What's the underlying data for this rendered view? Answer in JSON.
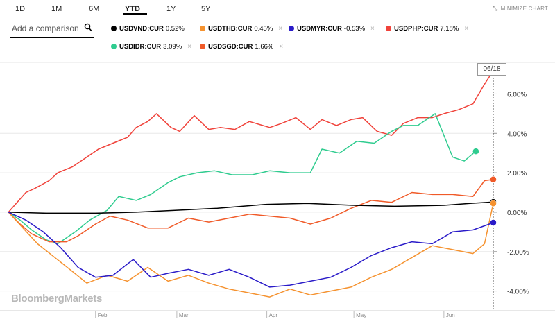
{
  "ranges": [
    "1D",
    "1M",
    "6M",
    "YTD",
    "1Y",
    "5Y"
  ],
  "active_range": "YTD",
  "minimize_label": "MINIMIZE CHART",
  "search": {
    "placeholder": "Add a comparison"
  },
  "date_badge": "06/18",
  "watermark": "BloombergMarkets",
  "legend": [
    {
      "name": "USDVND:CUR",
      "value": "0.52%",
      "color": "#000000",
      "removable": false
    },
    {
      "name": "USDTHB:CUR",
      "value": "0.45%",
      "color": "#f5922f",
      "removable": true
    },
    {
      "name": "USDMYR:CUR",
      "value": "-0.53%",
      "color": "#2a1bc8",
      "removable": true
    },
    {
      "name": "USDPHP:CUR",
      "value": "7.18%",
      "color": "#f0423a",
      "removable": true
    },
    {
      "name": "USDIDR:CUR",
      "value": "3.09%",
      "color": "#2fcc8f",
      "removable": true
    },
    {
      "name": "USDSGD:CUR",
      "value": "1.66%",
      "color": "#f05a28",
      "removable": true
    }
  ],
  "close_symbol": "×",
  "chart_data": {
    "type": "line",
    "ylim": [
      -5,
      7.6
    ],
    "y_ticks": [
      6,
      4,
      2,
      0,
      -2,
      -4
    ],
    "y_tick_labels": [
      "6.00%",
      "4.00%",
      "2.00%",
      "0.00%",
      "-2.00%",
      "-4.00%"
    ],
    "x_tick_labels": [
      "Feb",
      "Mar",
      "Apr",
      "May",
      "Jun"
    ],
    "x_tick_dates": [
      "2018-02-01",
      "2018-03-01",
      "2018-04-01",
      "2018-05-01",
      "2018-06-01"
    ],
    "x_range": [
      "2018-01-01",
      "2018-06-18"
    ],
    "grid": true,
    "series": [
      {
        "name": "USDPHP:CUR",
        "color": "#f0423a",
        "x": [
          "2018-01-02",
          "2018-01-05",
          "2018-01-08",
          "2018-01-11",
          "2018-01-16",
          "2018-01-19",
          "2018-01-24",
          "2018-01-29",
          "2018-02-02",
          "2018-02-07",
          "2018-02-12",
          "2018-02-15",
          "2018-02-19",
          "2018-02-22",
          "2018-02-27",
          "2018-03-02",
          "2018-03-07",
          "2018-03-12",
          "2018-03-16",
          "2018-03-21",
          "2018-03-26",
          "2018-04-02",
          "2018-04-06",
          "2018-04-11",
          "2018-04-16",
          "2018-04-20",
          "2018-04-25",
          "2018-04-30",
          "2018-05-04",
          "2018-05-09",
          "2018-05-14",
          "2018-05-18",
          "2018-05-23",
          "2018-05-28",
          "2018-06-01",
          "2018-06-06",
          "2018-06-11",
          "2018-06-15",
          "2018-06-18"
        ],
        "y": [
          0.0,
          0.5,
          1.0,
          1.2,
          1.6,
          2.0,
          2.3,
          2.8,
          3.2,
          3.5,
          3.8,
          4.3,
          4.6,
          5.0,
          4.3,
          4.1,
          4.9,
          4.2,
          4.3,
          4.2,
          4.6,
          4.3,
          4.5,
          4.8,
          4.2,
          4.7,
          4.4,
          4.7,
          4.8,
          4.1,
          3.9,
          4.5,
          4.8,
          4.8,
          5.0,
          5.2,
          5.5,
          6.5,
          7.18
        ]
      },
      {
        "name": "USDIDR:CUR",
        "color": "#2fcc8f",
        "x": [
          "2018-01-02",
          "2018-01-06",
          "2018-01-10",
          "2018-01-15",
          "2018-01-19",
          "2018-01-25",
          "2018-01-30",
          "2018-02-05",
          "2018-02-09",
          "2018-02-15",
          "2018-02-20",
          "2018-02-26",
          "2018-03-02",
          "2018-03-08",
          "2018-03-14",
          "2018-03-20",
          "2018-03-27",
          "2018-04-02",
          "2018-04-09",
          "2018-04-16",
          "2018-04-20",
          "2018-04-26",
          "2018-05-02",
          "2018-05-08",
          "2018-05-14",
          "2018-05-18",
          "2018-05-23",
          "2018-05-29",
          "2018-06-04",
          "2018-06-08",
          "2018-06-12"
        ],
        "y": [
          0.0,
          -0.4,
          -0.9,
          -1.4,
          -1.6,
          -1.0,
          -0.4,
          0.1,
          0.8,
          0.6,
          0.9,
          1.5,
          1.8,
          2.0,
          2.1,
          1.9,
          1.9,
          2.1,
          2.0,
          2.0,
          3.2,
          3.0,
          3.6,
          3.5,
          4.1,
          4.4,
          4.4,
          5.0,
          2.8,
          2.6,
          3.09
        ]
      },
      {
        "name": "USDSGD:CUR",
        "color": "#f05a28",
        "x": [
          "2018-01-02",
          "2018-01-06",
          "2018-01-10",
          "2018-01-16",
          "2018-01-22",
          "2018-01-26",
          "2018-02-01",
          "2018-02-06",
          "2018-02-12",
          "2018-02-19",
          "2018-02-26",
          "2018-03-05",
          "2018-03-12",
          "2018-03-19",
          "2018-03-26",
          "2018-04-02",
          "2018-04-09",
          "2018-04-16",
          "2018-04-23",
          "2018-04-30",
          "2018-05-07",
          "2018-05-14",
          "2018-05-21",
          "2018-05-28",
          "2018-06-04",
          "2018-06-11",
          "2018-06-15",
          "2018-06-18"
        ],
        "y": [
          0.0,
          -0.6,
          -1.1,
          -1.5,
          -1.5,
          -1.2,
          -0.6,
          -0.2,
          -0.4,
          -0.8,
          -0.8,
          -0.3,
          -0.5,
          -0.3,
          -0.1,
          -0.2,
          -0.3,
          -0.6,
          -0.3,
          0.2,
          0.6,
          0.5,
          1.0,
          0.9,
          0.9,
          0.8,
          1.6,
          1.66
        ]
      },
      {
        "name": "USDVND:CUR",
        "color": "#000000",
        "x": [
          "2018-01-02",
          "2018-01-15",
          "2018-02-01",
          "2018-02-15",
          "2018-03-01",
          "2018-03-15",
          "2018-04-01",
          "2018-04-15",
          "2018-05-01",
          "2018-05-15",
          "2018-06-01",
          "2018-06-10",
          "2018-06-18"
        ],
        "y": [
          0.0,
          -0.05,
          -0.05,
          0.0,
          0.1,
          0.2,
          0.4,
          0.45,
          0.35,
          0.3,
          0.35,
          0.45,
          0.52
        ]
      },
      {
        "name": "USDTHB:CUR",
        "color": "#f5922f",
        "x": [
          "2018-01-02",
          "2018-01-07",
          "2018-01-12",
          "2018-01-18",
          "2018-01-24",
          "2018-01-29",
          "2018-02-05",
          "2018-02-12",
          "2018-02-19",
          "2018-02-26",
          "2018-03-05",
          "2018-03-12",
          "2018-03-19",
          "2018-03-26",
          "2018-04-02",
          "2018-04-09",
          "2018-04-16",
          "2018-04-23",
          "2018-04-30",
          "2018-05-07",
          "2018-05-14",
          "2018-05-21",
          "2018-05-28",
          "2018-06-04",
          "2018-06-11",
          "2018-06-15",
          "2018-06-18"
        ],
        "y": [
          0.0,
          -0.8,
          -1.6,
          -2.3,
          -3.0,
          -3.6,
          -3.2,
          -3.5,
          -2.8,
          -3.5,
          -3.2,
          -3.6,
          -3.9,
          -4.1,
          -4.3,
          -3.9,
          -4.2,
          -4.0,
          -3.8,
          -3.3,
          -2.9,
          -2.3,
          -1.7,
          -1.9,
          -2.1,
          -1.6,
          0.45
        ]
      },
      {
        "name": "USDMYR:CUR",
        "color": "#2a1bc8",
        "x": [
          "2018-01-02",
          "2018-01-08",
          "2018-01-14",
          "2018-01-20",
          "2018-01-26",
          "2018-02-01",
          "2018-02-07",
          "2018-02-14",
          "2018-02-20",
          "2018-02-26",
          "2018-03-05",
          "2018-03-12",
          "2018-03-19",
          "2018-03-26",
          "2018-04-02",
          "2018-04-09",
          "2018-04-16",
          "2018-04-23",
          "2018-04-30",
          "2018-05-07",
          "2018-05-14",
          "2018-05-21",
          "2018-05-28",
          "2018-06-04",
          "2018-06-11",
          "2018-06-18"
        ],
        "y": [
          0.0,
          -0.4,
          -1.0,
          -1.8,
          -2.8,
          -3.3,
          -3.2,
          -2.4,
          -3.3,
          -3.1,
          -2.9,
          -3.2,
          -2.9,
          -3.3,
          -3.8,
          -3.7,
          -3.5,
          -3.3,
          -2.8,
          -2.2,
          -1.8,
          -1.5,
          -1.6,
          -1.0,
          -0.9,
          -0.53
        ]
      }
    ]
  }
}
